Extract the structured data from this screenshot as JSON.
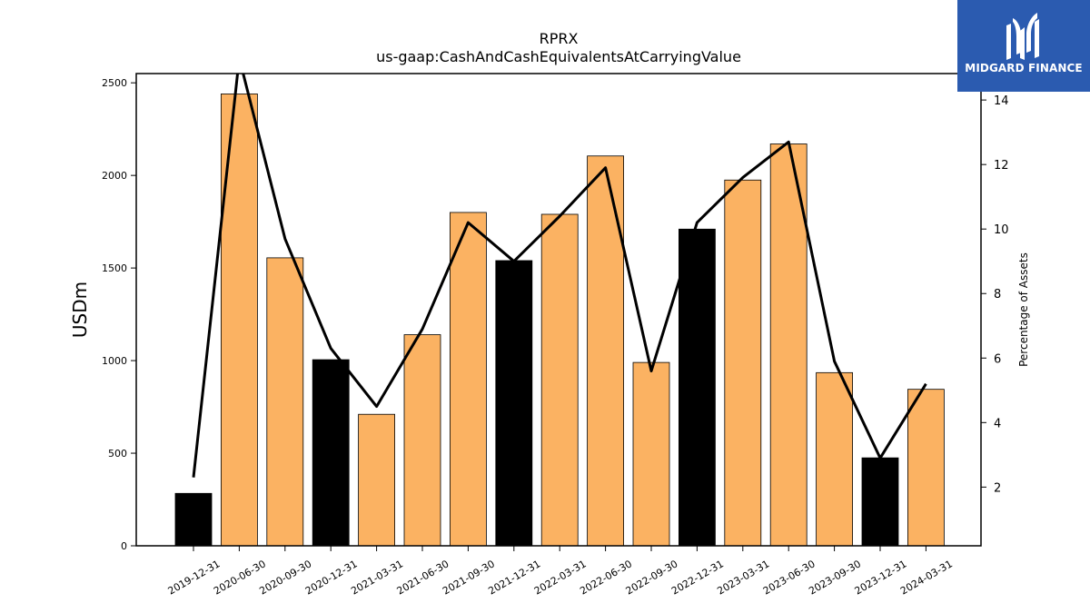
{
  "chart_data": {
    "type": "bar",
    "title": "RPRX",
    "subtitle": "us-gaap:CashAndCashEquivalentsAtCarryingValue",
    "ylabel": "USDm",
    "y2label": "Percentage of Assets",
    "categories": [
      "2019-12-31",
      "2020-06-30",
      "2020-09-30",
      "2020-12-31",
      "2021-03-31",
      "2021-06-30",
      "2021-09-30",
      "2021-12-31",
      "2022-03-31",
      "2022-06-30",
      "2022-09-30",
      "2022-12-31",
      "2023-03-31",
      "2023-06-30",
      "2023-09-30",
      "2023-12-31",
      "2024-03-31"
    ],
    "values": [
      283,
      2440,
      1555,
      1005,
      710,
      1140,
      1800,
      1540,
      1790,
      2105,
      990,
      1710,
      1975,
      2170,
      935,
      475,
      845
    ],
    "bar_kind": [
      "annual",
      "quarter",
      "quarter",
      "annual",
      "quarter",
      "quarter",
      "quarter",
      "annual",
      "quarter",
      "quarter",
      "quarter",
      "annual",
      "quarter",
      "quarter",
      "quarter",
      "annual",
      "quarter"
    ],
    "line_values": [
      2.3,
      15.3,
      9.7,
      6.3,
      4.5,
      6.9,
      10.2,
      9.0,
      10.4,
      11.9,
      5.6,
      10.2,
      11.6,
      12.7,
      5.9,
      2.9,
      5.2
    ],
    "ylim": [
      0,
      2550
    ],
    "y2lim": [
      0.18,
      14.82
    ],
    "yticks": [
      0,
      500,
      1000,
      1500,
      2000,
      2500
    ],
    "y2ticks": [
      2,
      4,
      6,
      8,
      10,
      12,
      14
    ],
    "colors": {
      "quarter": "#fbb262",
      "annual": "#000000",
      "line": "#000000",
      "edge": "#000000"
    },
    "grid": false,
    "legend": "none"
  },
  "logo": {
    "text": "MIDGARD FINANCE",
    "icon": "midgard-logo-icon"
  }
}
